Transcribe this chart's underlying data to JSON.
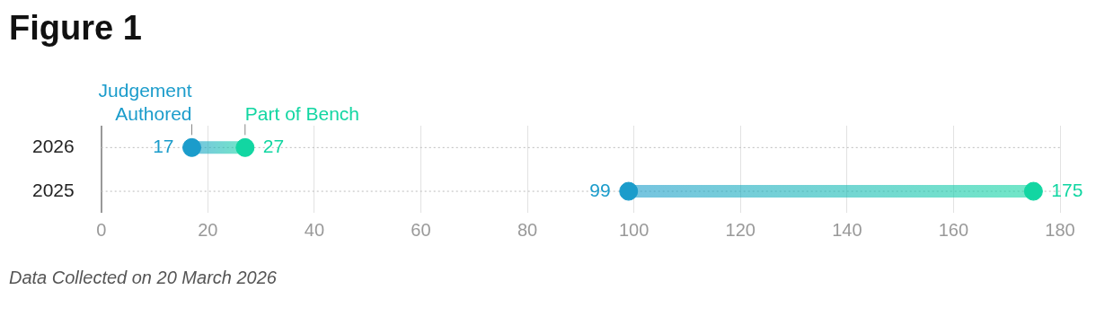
{
  "chart_data": {
    "type": "scatter",
    "title": "Figure 1",
    "orientation": "horizontal",
    "categories": [
      "2026",
      "2025"
    ],
    "series": [
      {
        "name": "Judgement Authored",
        "color": "#1b9ccb",
        "values": [
          17,
          99
        ]
      },
      {
        "name": "Part of Bench",
        "color": "#12d6a2",
        "values": [
          27,
          175
        ]
      }
    ],
    "xlim": [
      0,
      180
    ],
    "xticks": [
      0,
      20,
      40,
      60,
      80,
      100,
      120,
      140,
      160,
      180
    ],
    "grid": true,
    "legend": false,
    "data_labels": true,
    "marker": "circle",
    "annotations": [
      "Data Collected on 20 March 2026"
    ]
  }
}
